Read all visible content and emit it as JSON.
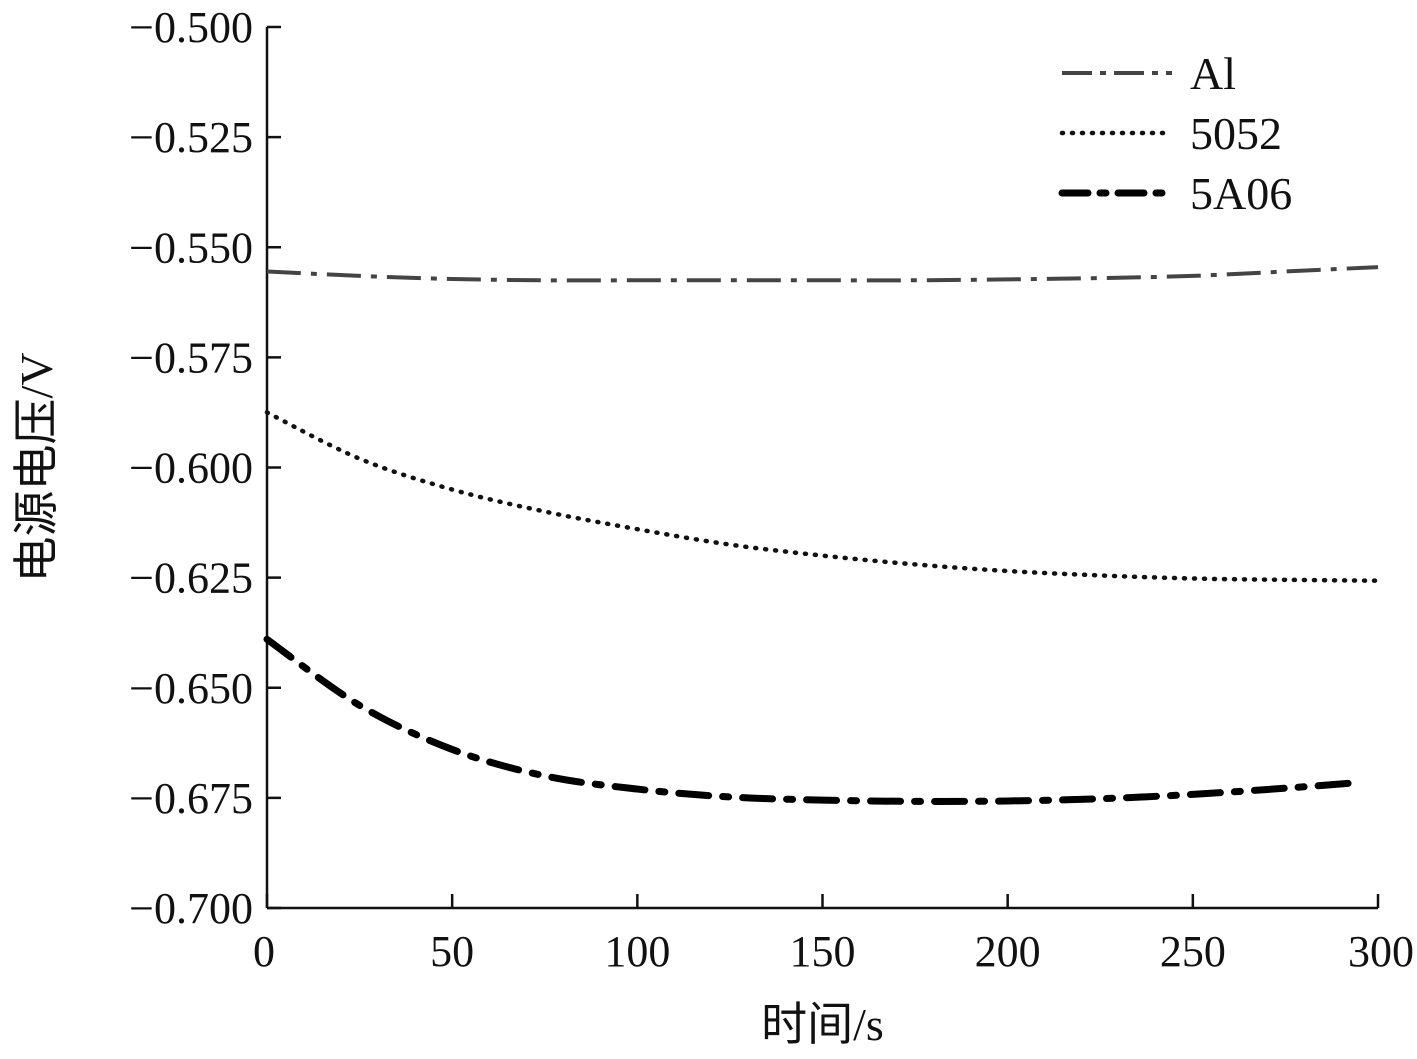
{
  "chart_data": {
    "type": "line",
    "title": "",
    "xlabel": "时间/s",
    "ylabel": "电源电压/V",
    "xlim": [
      0,
      300
    ],
    "ylim": [
      -0.7,
      -0.5
    ],
    "x_ticks": [
      0,
      50,
      100,
      150,
      200,
      250,
      300
    ],
    "x_tick_labels": [
      "0",
      "50",
      "100",
      "150",
      "200",
      "250",
      "300"
    ],
    "y_ticks": [
      -0.5,
      -0.525,
      -0.55,
      -0.575,
      -0.6,
      -0.625,
      -0.65,
      -0.675,
      -0.7
    ],
    "y_tick_labels": [
      "−0.500",
      "−0.525",
      "−0.550",
      "−0.575",
      "−0.600",
      "−0.625",
      "−0.650",
      "−0.675",
      "−0.700"
    ],
    "grid": false,
    "legend_position": "top-right",
    "series": [
      {
        "name": "Al",
        "style": "dash-dot",
        "color": "#444444",
        "x": [
          0,
          25,
          50,
          75,
          100,
          125,
          150,
          175,
          200,
          225,
          250,
          275,
          300
        ],
        "y": [
          -0.5555,
          -0.5565,
          -0.5572,
          -0.5575,
          -0.5575,
          -0.5575,
          -0.5575,
          -0.5575,
          -0.5573,
          -0.557,
          -0.5565,
          -0.5555,
          -0.5545
        ]
      },
      {
        "name": "5052",
        "style": "dotted",
        "color": "#111111",
        "x": [
          0,
          25,
          50,
          75,
          100,
          125,
          150,
          175,
          200,
          225,
          250,
          275,
          300
        ],
        "y": [
          -0.5875,
          -0.598,
          -0.605,
          -0.61,
          -0.614,
          -0.6175,
          -0.62,
          -0.622,
          -0.6235,
          -0.6245,
          -0.6252,
          -0.6255,
          -0.6257
        ]
      },
      {
        "name": "5A06",
        "style": "thick-dash-dot",
        "color": "#000000",
        "x": [
          0,
          25,
          50,
          75,
          100,
          125,
          150,
          175,
          200,
          225,
          250,
          275,
          295
        ],
        "y": [
          -0.639,
          -0.654,
          -0.664,
          -0.67,
          -0.673,
          -0.6748,
          -0.6755,
          -0.6758,
          -0.6757,
          -0.6752,
          -0.6742,
          -0.6728,
          -0.6715
        ]
      }
    ]
  }
}
